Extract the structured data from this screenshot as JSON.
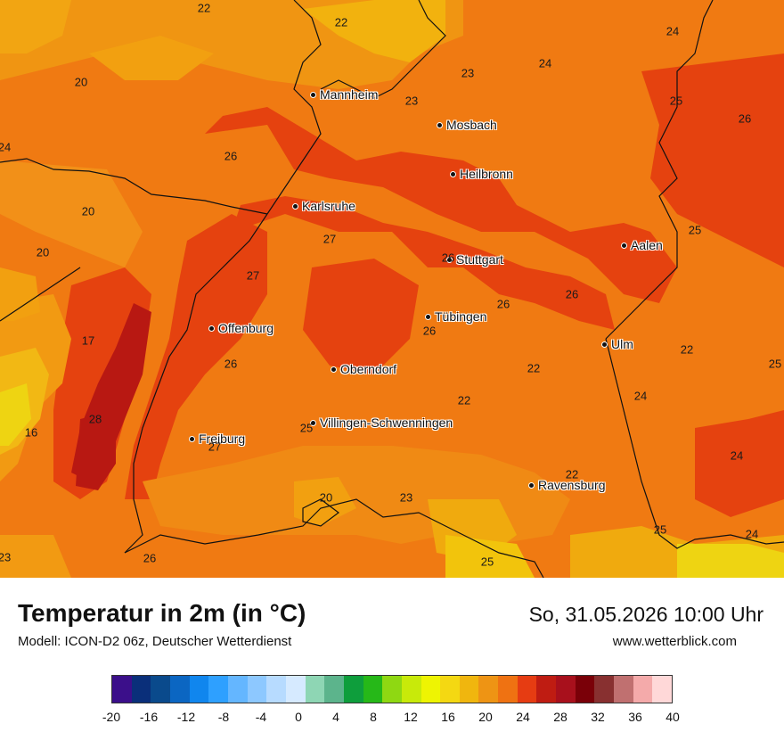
{
  "map": {
    "cities": [
      {
        "name": "Mannheim"
      },
      {
        "name": "Mosbach"
      },
      {
        "name": "Heilbronn"
      },
      {
        "name": "Karlsruhe"
      },
      {
        "name": "Aalen"
      },
      {
        "name": "Stuttgart"
      },
      {
        "name": "Tübingen"
      },
      {
        "name": "Offenburg"
      },
      {
        "name": "Ulm"
      },
      {
        "name": "Oberndorf"
      },
      {
        "name": "Villingen-Schwenningen"
      },
      {
        "name": "Freiburg"
      },
      {
        "name": "Ravensburg"
      }
    ],
    "temperature_values": [
      "22",
      "22",
      "24",
      "20",
      "24",
      "23",
      "23",
      "25",
      "26",
      "24",
      "26",
      "20",
      "20",
      "27",
      "25",
      "27",
      "26",
      "26",
      "26",
      "26",
      "17",
      "26",
      "22",
      "22",
      "25",
      "22",
      "24",
      "28",
      "16",
      "27",
      "25",
      "24",
      "20",
      "23",
      "22",
      "26",
      "23",
      "25",
      "25",
      "24"
    ]
  },
  "footer": {
    "title": "Temperatur in 2m (in °C)",
    "model": "Modell: ICON-D2 06z, Deutscher Wetterdienst",
    "datetime": "So, 31.05.2026 10:00 Uhr",
    "website": "www.wetterblick.com"
  },
  "legend": {
    "ticks": [
      "-20",
      "-16",
      "-12",
      "-8",
      "-4",
      "0",
      "4",
      "8",
      "12",
      "16",
      "20",
      "24",
      "28",
      "32",
      "36",
      "40"
    ],
    "colors": [
      "#3b0f8a",
      "#0a2f7a",
      "#0a4a8c",
      "#0b66c2",
      "#1086ee",
      "#2ea0ff",
      "#64b6ff",
      "#8dc8ff",
      "#b7dbff",
      "#d6eaff",
      "#8ed6b4",
      "#5cb48c",
      "#0e9e3c",
      "#26b818",
      "#8fd812",
      "#c8ea0a",
      "#eef402",
      "#f4d812",
      "#f0b60e",
      "#ee9414",
      "#ef7212",
      "#e63c12",
      "#bf1c12",
      "#a8101c",
      "#7a0008",
      "#883030",
      "#c07070",
      "#f4aaaa",
      "#ffd8d8"
    ]
  }
}
